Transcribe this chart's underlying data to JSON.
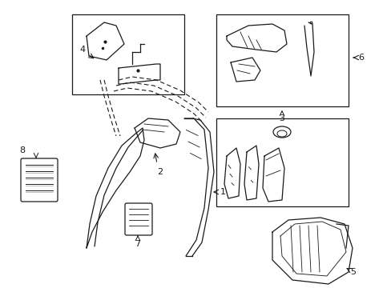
{
  "bg_color": "#ffffff",
  "line_color": "#1a1a1a",
  "figsize": [
    4.89,
    3.6
  ],
  "dpi": 100,
  "lw": 0.9
}
